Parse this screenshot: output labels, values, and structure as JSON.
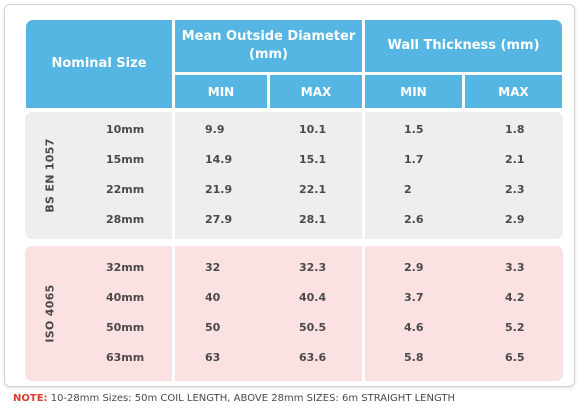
{
  "header": {
    "nominal_size": "Nominal Size",
    "mean_outside_diameter": "Mean Outside Diameter (mm)",
    "wall_thickness": "Wall Thickness (mm)",
    "min": "MIN",
    "max": "MAX"
  },
  "groups": [
    {
      "standard": "BS EN 1057",
      "rows": [
        {
          "size": "10mm",
          "mean_min": "9.9",
          "mean_max": "10.1",
          "wall_min": "1.5",
          "wall_max": "1.8"
        },
        {
          "size": "15mm",
          "mean_min": "14.9",
          "mean_max": "15.1",
          "wall_min": "1.7",
          "wall_max": "2.1"
        },
        {
          "size": "22mm",
          "mean_min": "21.9",
          "mean_max": "22.1",
          "wall_min": "2",
          "wall_max": "2.3"
        },
        {
          "size": "28mm",
          "mean_min": "27.9",
          "mean_max": "28.1",
          "wall_min": "2.6",
          "wall_max": "2.9"
        }
      ]
    },
    {
      "standard": "ISO 4065",
      "rows": [
        {
          "size": "32mm",
          "mean_min": "32",
          "mean_max": "32.3",
          "wall_min": "2.9",
          "wall_max": "3.3"
        },
        {
          "size": "40mm",
          "mean_min": "40",
          "mean_max": "40.4",
          "wall_min": "3.7",
          "wall_max": "4.2"
        },
        {
          "size": "50mm",
          "mean_min": "50",
          "mean_max": "50.5",
          "wall_min": "4.6",
          "wall_max": "5.2"
        },
        {
          "size": "63mm",
          "mean_min": "63",
          "mean_max": "63.6",
          "wall_min": "5.8",
          "wall_max": "6.5"
        }
      ]
    }
  ],
  "note": {
    "label": "NOTE:",
    "text": "10-28mm Sizes: 50m COIL LENGTH, ABOVE 28mm SIZES: 6m STRAIGHT LENGTH"
  },
  "colors": {
    "header_bg": "#55b5e3",
    "bs_group_bg": "#eeeeee",
    "iso_group_bg": "#fbe1e1",
    "note_label": "#e03a2a"
  }
}
